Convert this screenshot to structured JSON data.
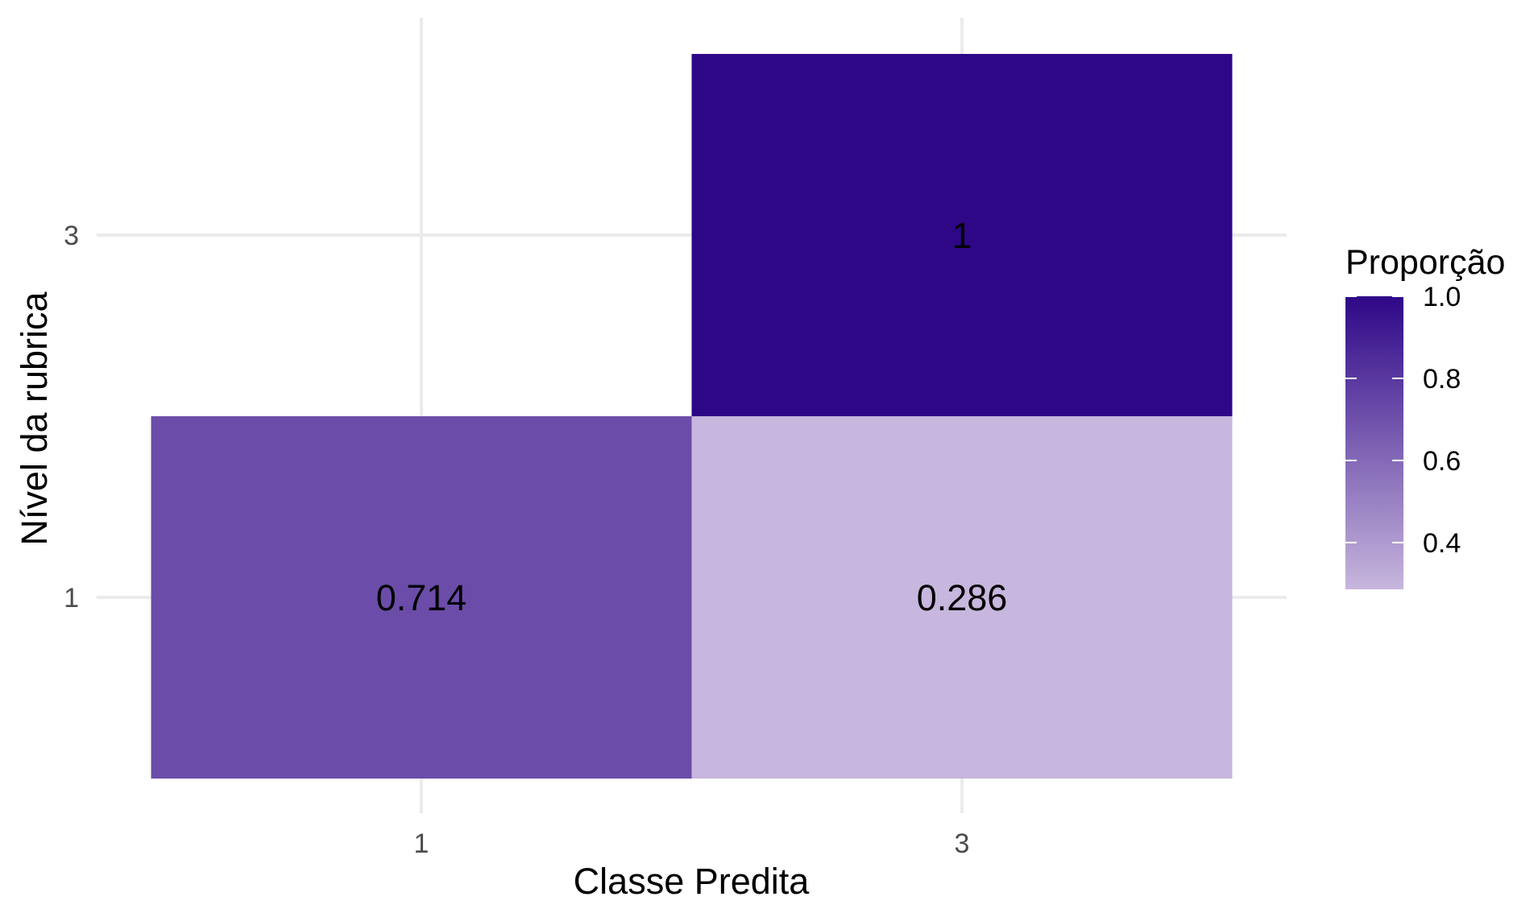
{
  "chart_data": {
    "type": "heatmap",
    "title": "",
    "xlabel": "Classe Predita",
    "ylabel": "Nível da rubrica",
    "x_categories": [
      "1",
      "3"
    ],
    "y_categories": [
      "1",
      "3"
    ],
    "cells": [
      {
        "x": "1",
        "y": "1",
        "value": 0.714,
        "label": "0.714"
      },
      {
        "x": "3",
        "y": "1",
        "value": 0.286,
        "label": "0.286"
      },
      {
        "x": "3",
        "y": "3",
        "value": 1.0,
        "label": "1"
      }
    ],
    "grid": true,
    "legend": {
      "title": "Proporção",
      "position": "right",
      "range": [
        0.286,
        1.0
      ],
      "ticks": [
        0.4,
        0.6,
        0.8,
        1.0
      ],
      "tick_labels": [
        "0.4",
        "0.6",
        "0.8",
        "1.0"
      ],
      "color_low": "#c7b6dd",
      "color_high": "#2e0787"
    }
  }
}
